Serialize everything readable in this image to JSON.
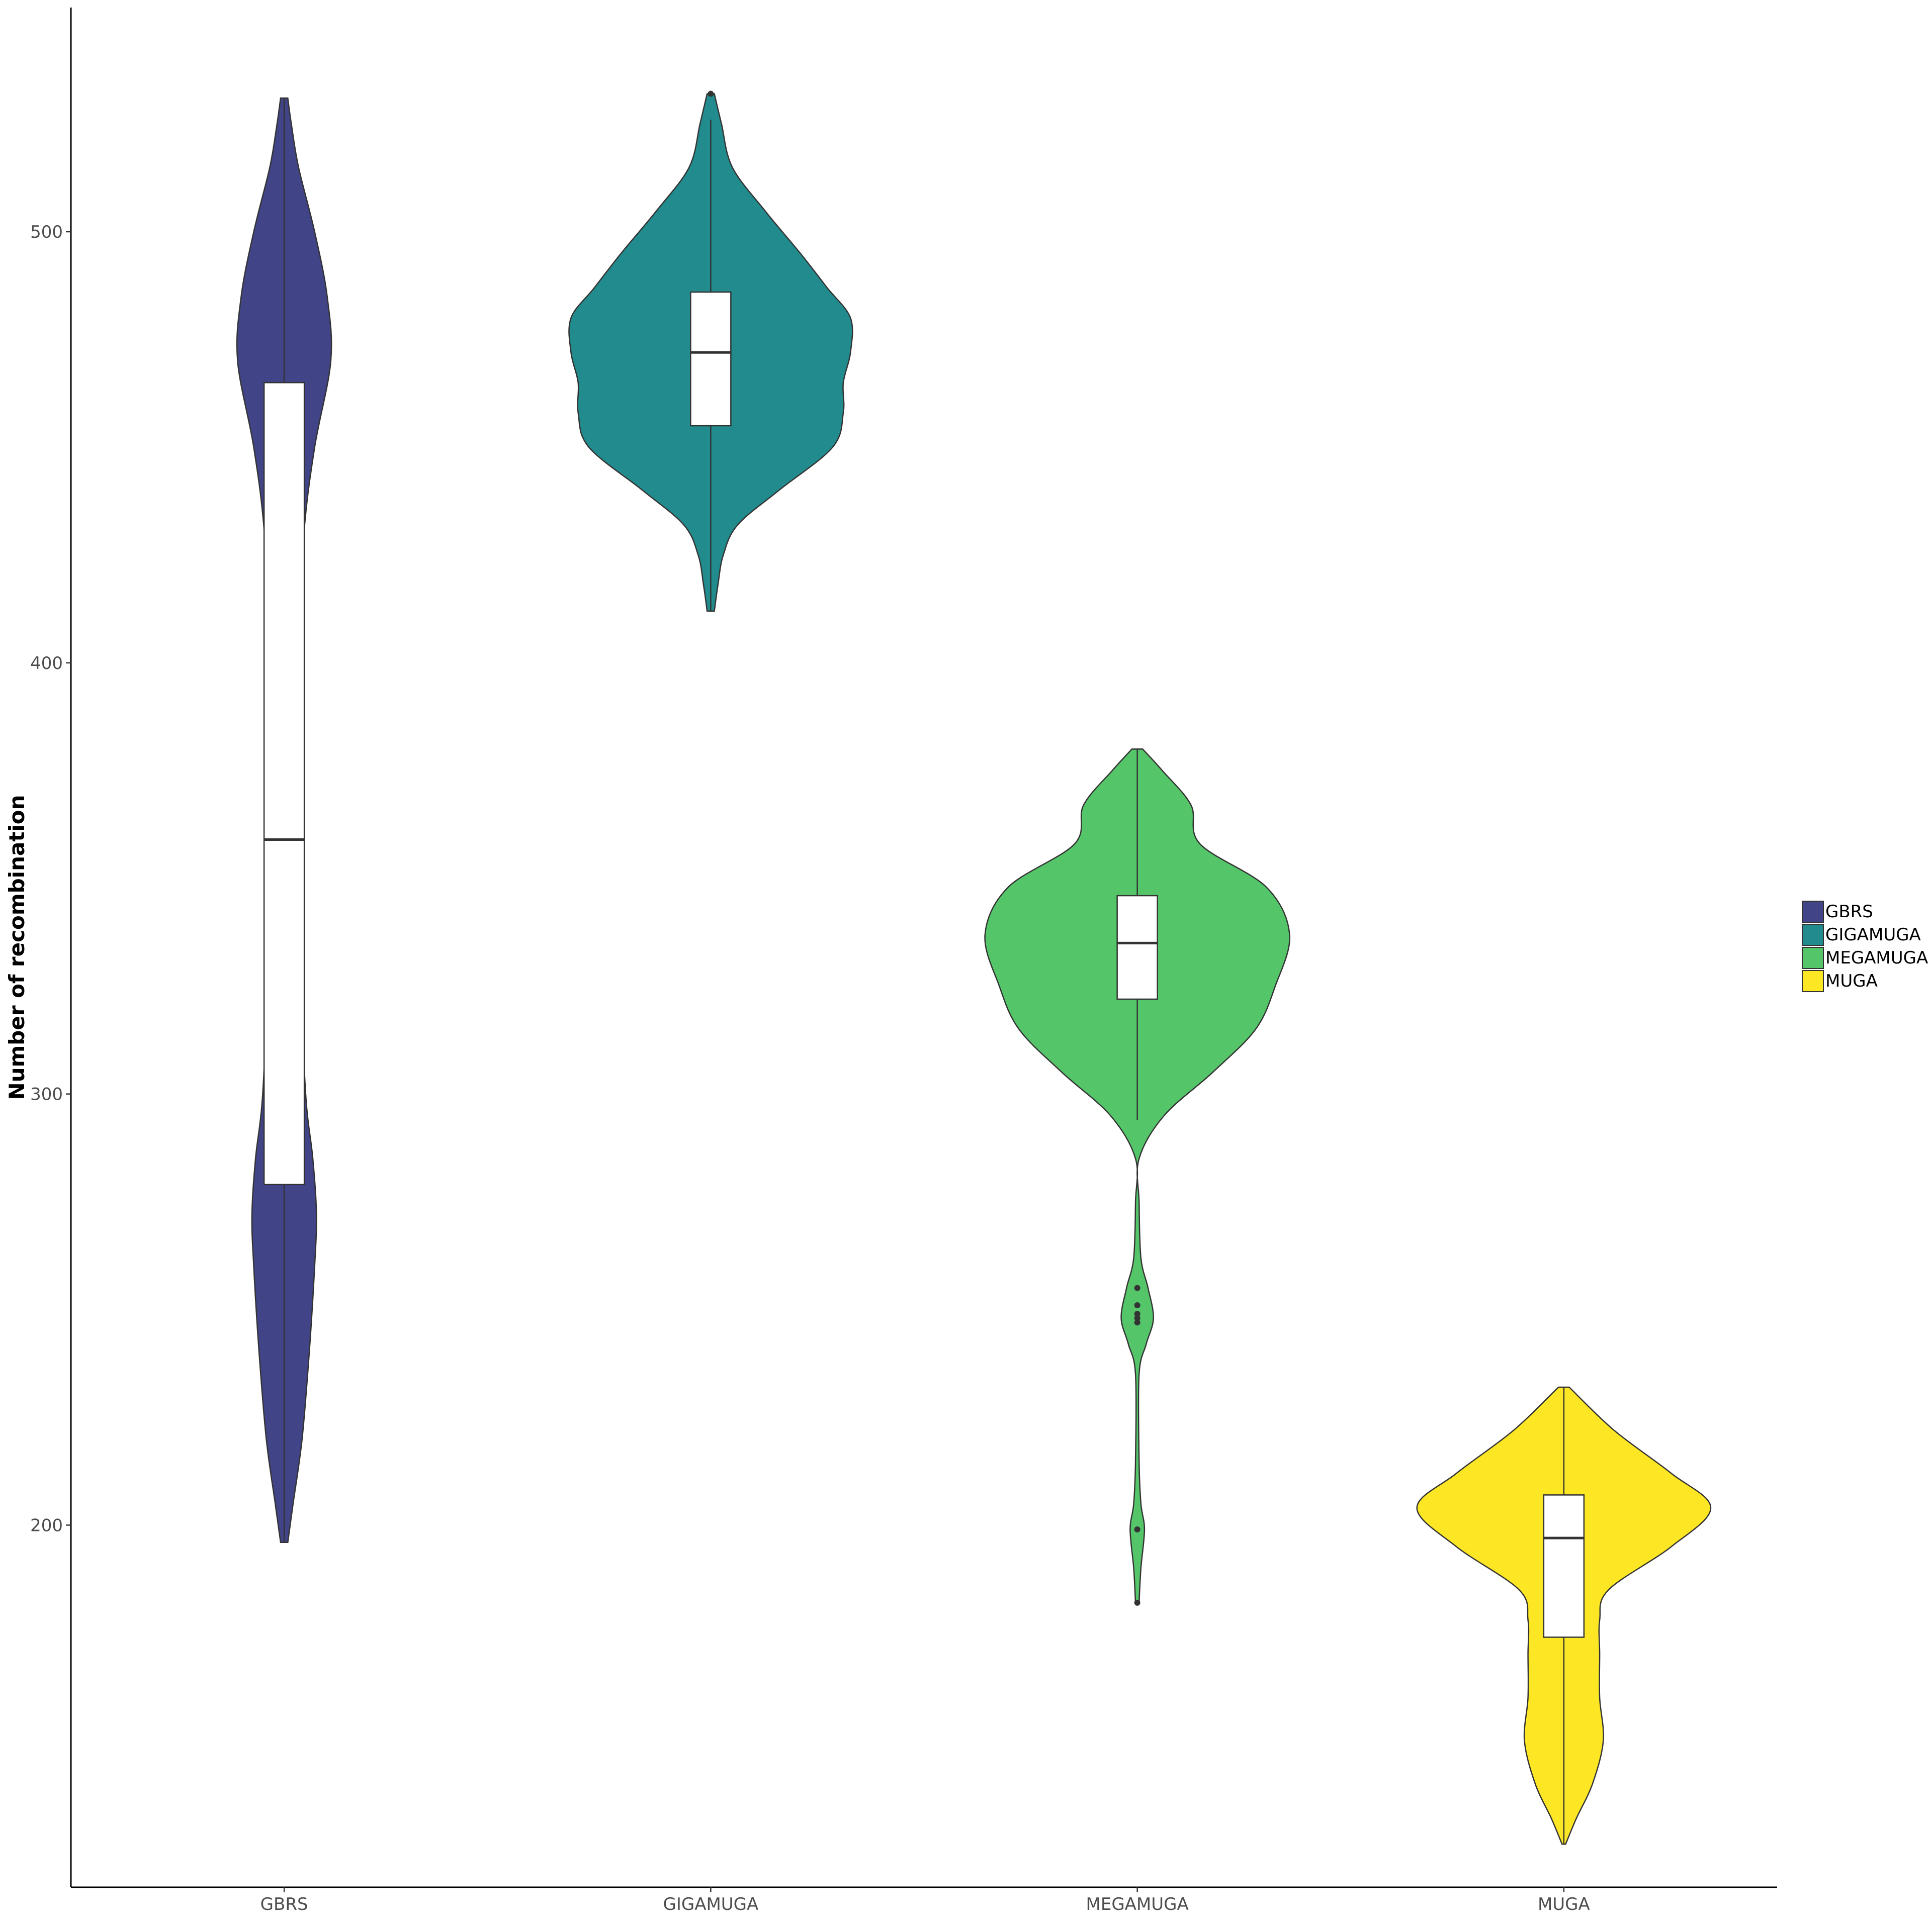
{
  "chart_data": {
    "type": "violin",
    "title": "",
    "xlabel": "",
    "ylabel": "Number of recombination",
    "categories": [
      "GBRS",
      "GIGAMUGA",
      "MEGAMUGA",
      "MUGA"
    ],
    "ylim": [
      116,
      552
    ],
    "yticks": [
      200,
      300,
      400,
      500
    ],
    "grid": false,
    "legend_position": "right",
    "legend": [
      "GBRS",
      "GIGAMUGA",
      "MEGAMUGA",
      "MUGA"
    ],
    "series": [
      {
        "name": "GBRS",
        "color": "#414487",
        "boxplot": {
          "whisker_low": 196,
          "q1": 279,
          "median": 359,
          "q3": 465,
          "whisker_high": 531
        },
        "outliers": [],
        "violin_profile": [
          [
            196,
            0.02
          ],
          [
            205,
            0.05
          ],
          [
            220,
            0.1
          ],
          [
            240,
            0.14
          ],
          [
            260,
            0.17
          ],
          [
            272,
            0.18
          ],
          [
            285,
            0.16
          ],
          [
            300,
            0.12
          ],
          [
            330,
            0.09
          ],
          [
            345,
            0.1
          ],
          [
            360,
            0.08
          ],
          [
            375,
            0.06
          ],
          [
            400,
            0.07
          ],
          [
            430,
            0.11
          ],
          [
            450,
            0.17
          ],
          [
            470,
            0.26
          ],
          [
            485,
            0.24
          ],
          [
            500,
            0.17
          ],
          [
            515,
            0.08
          ],
          [
            525,
            0.04
          ],
          [
            531,
            0.02
          ]
        ]
      },
      {
        "name": "GIGAMUGA",
        "color": "#228B8D",
        "boxplot": {
          "whisker_low": 412,
          "q1": 455,
          "median": 472,
          "q3": 486,
          "whisker_high": 526
        },
        "outliers": [
          532
        ],
        "violin_profile": [
          [
            412,
            0.02
          ],
          [
            418,
            0.04
          ],
          [
            425,
            0.07
          ],
          [
            432,
            0.15
          ],
          [
            440,
            0.38
          ],
          [
            450,
            0.68
          ],
          [
            458,
            0.74
          ],
          [
            465,
            0.74
          ],
          [
            472,
            0.78
          ],
          [
            480,
            0.78
          ],
          [
            487,
            0.65
          ],
          [
            495,
            0.5
          ],
          [
            505,
            0.3
          ],
          [
            515,
            0.12
          ],
          [
            525,
            0.06
          ],
          [
            532,
            0.02
          ]
        ]
      },
      {
        "name": "MEGAMUGA",
        "color": "#54C568",
        "boxplot": {
          "whisker_low": 294,
          "q1": 322,
          "median": 335,
          "q3": 346,
          "whisker_high": 380
        },
        "outliers": [
          255,
          251,
          249,
          248,
          247,
          199,
          182
        ],
        "violin_profile": [
          [
            182,
            0.01
          ],
          [
            190,
            0.02
          ],
          [
            199,
            0.04
          ],
          [
            205,
            0.02
          ],
          [
            215,
            0.01
          ],
          [
            235,
            0.01
          ],
          [
            242,
            0.05
          ],
          [
            248,
            0.09
          ],
          [
            255,
            0.06
          ],
          [
            262,
            0.02
          ],
          [
            275,
            0.01
          ],
          [
            285,
            0.01
          ],
          [
            295,
            0.15
          ],
          [
            305,
            0.42
          ],
          [
            315,
            0.66
          ],
          [
            325,
            0.77
          ],
          [
            337,
            0.85
          ],
          [
            348,
            0.72
          ],
          [
            358,
            0.35
          ],
          [
            367,
            0.3
          ],
          [
            375,
            0.14
          ],
          [
            380,
            0.03
          ]
        ]
      },
      {
        "name": "MUGA",
        "color": "#FDE725",
        "boxplot": {
          "whisker_low": 126,
          "q1": 174,
          "median": 197,
          "q3": 207,
          "whisker_high": 232
        },
        "outliers": [],
        "violin_profile": [
          [
            126,
            0.01
          ],
          [
            132,
            0.07
          ],
          [
            140,
            0.16
          ],
          [
            150,
            0.22
          ],
          [
            160,
            0.2
          ],
          [
            170,
            0.2
          ],
          [
            178,
            0.2
          ],
          [
            185,
            0.25
          ],
          [
            195,
            0.6
          ],
          [
            204,
            0.82
          ],
          [
            212,
            0.6
          ],
          [
            222,
            0.28
          ],
          [
            232,
            0.03
          ]
        ]
      }
    ]
  }
}
